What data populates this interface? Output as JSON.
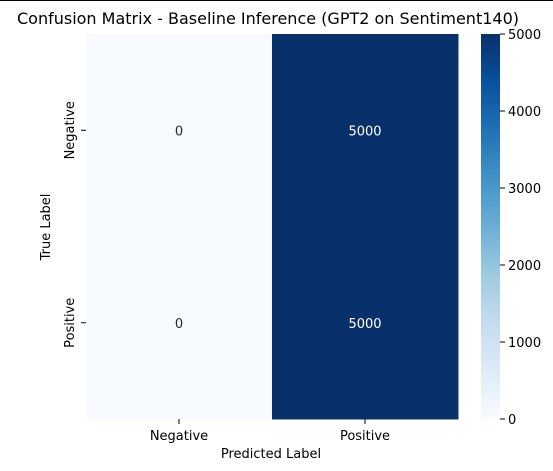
{
  "chart_data": {
    "type": "heatmap",
    "title": "Confusion Matrix - Baseline Inference (GPT2 on Sentiment140)",
    "xlabel": "Predicted Label",
    "ylabel": "True Label",
    "x_categories": [
      "Negative",
      "Positive"
    ],
    "y_categories": [
      "Negative",
      "Positive"
    ],
    "values": [
      [
        0,
        5000
      ],
      [
        0,
        5000
      ]
    ],
    "annotations": [
      [
        "0",
        "5000"
      ],
      [
        "0",
        "5000"
      ]
    ],
    "colormap": "Blues",
    "colors": {
      "low": "#f7fbff",
      "high": "#08306b",
      "annot_dark": "#262626",
      "annot_light": "#ffffff"
    },
    "colorbar": {
      "range": [
        0,
        5000
      ],
      "ticks": [
        0,
        1000,
        2000,
        3000,
        4000,
        5000
      ],
      "tick_labels": [
        "0",
        "1000",
        "2000",
        "3000",
        "4000",
        "5000"
      ]
    },
    "grid": false,
    "legend": "none"
  }
}
